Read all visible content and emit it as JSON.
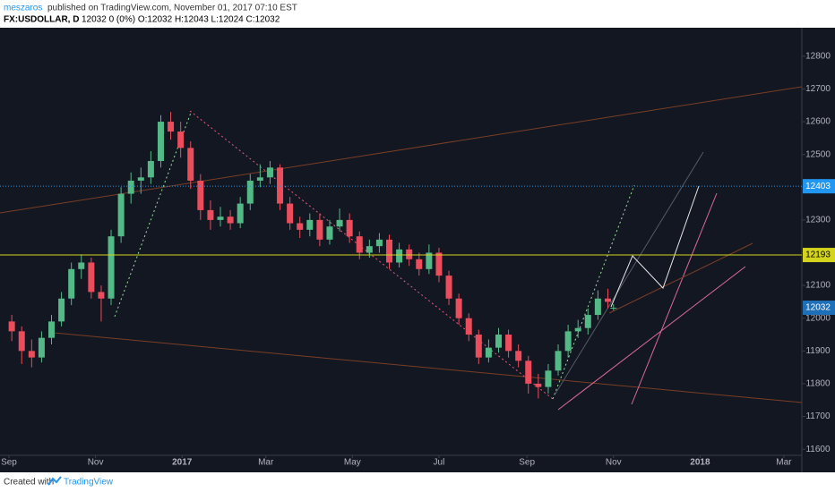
{
  "header": {
    "author": "meszaros",
    "published": "published on TradingView.com, November 01, 2017 07:10 EST",
    "symbol": "FX:USDOLLAR, D",
    "quote": "12032 0 (0%) O:12032 H:12043 L:12024 C:12032"
  },
  "footer": {
    "created": "Created with",
    "brand": "TradingView"
  },
  "chart_data": {
    "type": "candlestick",
    "x": [
      2,
      9,
      16,
      23,
      30,
      37,
      44,
      51,
      58,
      65,
      72,
      79,
      86,
      93,
      100,
      107,
      114,
      121,
      128,
      135,
      142,
      149,
      156,
      163,
      170,
      177,
      184,
      191,
      198,
      205,
      212,
      219,
      226,
      233,
      240,
      247,
      254,
      261,
      268,
      275,
      282,
      289,
      296,
      303,
      310,
      317,
      324,
      331,
      338,
      345,
      352,
      359,
      366,
      373,
      380,
      387,
      394,
      401,
      408,
      415,
      422,
      426
    ],
    "open": [
      11990,
      11960,
      11900,
      11880,
      11940,
      11990,
      12060,
      12150,
      12170,
      12080,
      12060,
      12250,
      12380,
      12420,
      12430,
      12480,
      12600,
      12570,
      12520,
      12420,
      12330,
      12300,
      12310,
      12290,
      12350,
      12420,
      12430,
      12460,
      12350,
      12290,
      12270,
      12300,
      12240,
      12280,
      12300,
      12250,
      12200,
      12220,
      12240,
      12170,
      12210,
      12180,
      12150,
      12200,
      12130,
      12060,
      12000,
      11950,
      11880,
      11910,
      11950,
      11900,
      11870,
      11800,
      11790,
      11840,
      11900,
      11960,
      11970,
      12010,
      12060,
      12032
    ],
    "high": [
      12010,
      11975,
      11935,
      11960,
      12010,
      12080,
      12170,
      12195,
      12185,
      12100,
      12270,
      12400,
      12445,
      12460,
      12510,
      12620,
      12630,
      12600,
      12540,
      12440,
      12360,
      12340,
      12330,
      12370,
      12440,
      12470,
      12480,
      12470,
      12370,
      12310,
      12320,
      12320,
      12300,
      12335,
      12320,
      12265,
      12240,
      12260,
      12255,
      12230,
      12225,
      12200,
      12225,
      12215,
      12145,
      12075,
      12015,
      11965,
      11935,
      11970,
      11965,
      11920,
      11885,
      11830,
      11860,
      11920,
      11980,
      11995,
      12030,
      12085,
      12090,
      12043
    ],
    "low": [
      11930,
      11860,
      11850,
      11865,
      11920,
      11975,
      12040,
      12120,
      12060,
      11990,
      12040,
      12230,
      12350,
      12380,
      12410,
      12460,
      12545,
      12490,
      12395,
      12300,
      12270,
      12280,
      12270,
      12275,
      12330,
      12400,
      12410,
      12330,
      12270,
      12245,
      12250,
      12220,
      12225,
      12265,
      12230,
      12180,
      12185,
      12200,
      12150,
      12155,
      12160,
      12130,
      12135,
      12110,
      12040,
      11980,
      11930,
      11860,
      11865,
      11895,
      11880,
      11850,
      11770,
      11755,
      11770,
      11825,
      11880,
      11940,
      11950,
      11995,
      12030,
      12024
    ],
    "close": [
      11960,
      11900,
      11880,
      11940,
      11990,
      12060,
      12150,
      12170,
      12080,
      12060,
      12250,
      12380,
      12420,
      12430,
      12480,
      12600,
      12570,
      12520,
      12420,
      12330,
      12300,
      12310,
      12290,
      12350,
      12420,
      12430,
      12460,
      12350,
      12290,
      12270,
      12300,
      12240,
      12280,
      12300,
      12250,
      12200,
      12220,
      12240,
      12170,
      12210,
      12180,
      12150,
      12200,
      12130,
      12060,
      12000,
      11950,
      11880,
      11910,
      11950,
      11900,
      11870,
      11800,
      11790,
      11840,
      11900,
      11960,
      11970,
      12010,
      12060,
      12050,
      12032
    ],
    "up_color": "#53b987",
    "down_color": "#eb4d5c",
    "xlim": [
      -6.3,
      558.7
    ],
    "xticks": [
      {
        "value": 0,
        "label": "Sep"
      },
      {
        "value": 61,
        "label": "Nov"
      },
      {
        "value": 122,
        "label": "2017"
      },
      {
        "value": 181,
        "label": "Mar"
      },
      {
        "value": 242,
        "label": "May"
      },
      {
        "value": 303,
        "label": "Jul"
      },
      {
        "value": 365,
        "label": "Sep"
      },
      {
        "value": 426,
        "label": "Nov"
      },
      {
        "value": 487,
        "label": "2018"
      },
      {
        "value": 546,
        "label": "Mar"
      }
    ],
    "ylim": [
      11584,
      12887
    ],
    "yticks": [
      11600,
      11700,
      11800,
      11900,
      12000,
      12100,
      12200,
      12300,
      12400,
      12500,
      12600,
      12700,
      12800
    ],
    "price_lines": [
      {
        "value": 12403,
        "color": "#2196f3",
        "text_color": "#ffffff",
        "dash": true
      },
      {
        "value": 12193,
        "color": "#d4d41c",
        "text_color": "#000000",
        "dash": false
      }
    ],
    "last_price": {
      "value": 12032,
      "color": "#1e6fb8"
    },
    "grid": false
  }
}
